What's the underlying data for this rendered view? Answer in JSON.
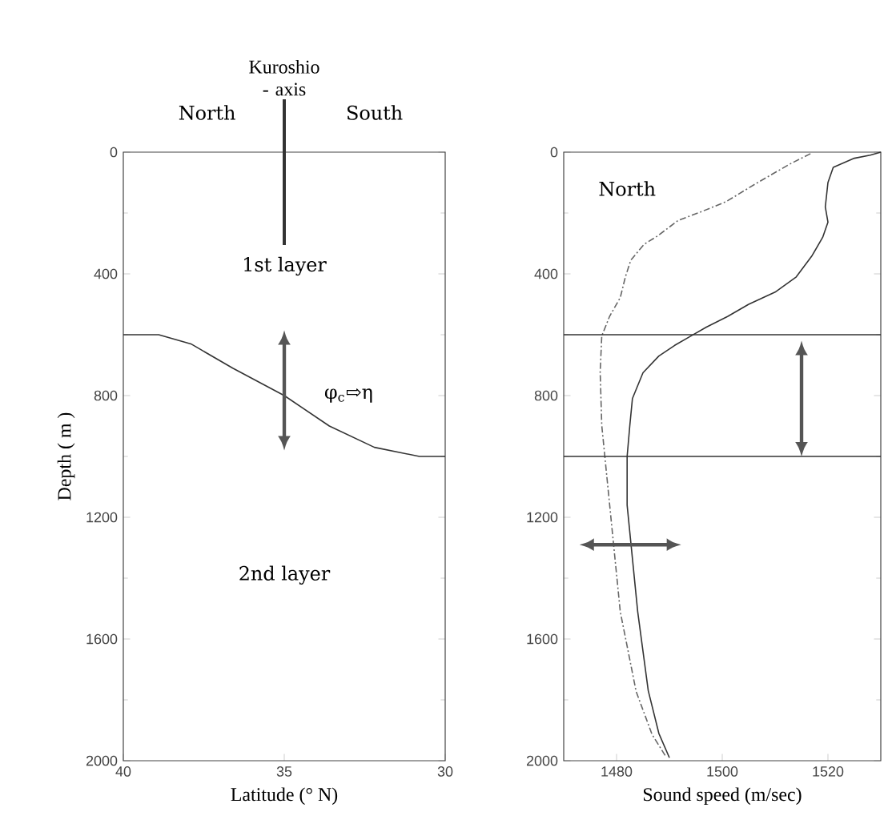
{
  "chart_data": [
    {
      "type": "line",
      "xlabel": "Latitude (° N)",
      "ylabel": "Depth ( m )",
      "xlim": [
        40,
        30
      ],
      "ylim": [
        2000,
        0
      ],
      "xticks": [
        40,
        35,
        30
      ],
      "yticks": [
        0,
        400,
        800,
        1200,
        1600,
        2000
      ],
      "marker": "none",
      "ref_lines": [
        {
          "axis": "x",
          "value": 35,
          "label": "Kuroshio - axis",
          "color": "#333333"
        }
      ],
      "annotations": [
        "North",
        "South",
        "1st layer",
        "2nd layer",
        "φ$_{c}$⇨η"
      ],
      "series": [
        {
          "color": "#333333",
          "line_style": "solid",
          "x": [
            40,
            38.9,
            37.9,
            36.6,
            35,
            33.6,
            32.2,
            30.8,
            30
          ],
          "values": [
            600,
            600,
            630,
            710,
            800,
            900,
            970,
            1000,
            1000
          ]
        }
      ]
    },
    {
      "type": "line",
      "xlabel": "Sound speed  (m/sec)",
      "xlim": [
        1470,
        1530
      ],
      "ylim": [
        2000,
        0
      ],
      "xticks": [
        1480,
        1500,
        1520
      ],
      "yticks": [
        0,
        400,
        800,
        1200,
        1600,
        2000
      ],
      "marker": "none",
      "ref_lines": [
        {
          "axis": "y",
          "value": 600,
          "color": "#333333"
        },
        {
          "axis": "y",
          "value": 1000,
          "color": "#333333"
        }
      ],
      "annotations": [
        "North"
      ],
      "series": [
        {
          "color": "#333333",
          "line_style": "solid",
          "x": [
            1530,
            1528,
            1525,
            1521,
            1520,
            1519.5,
            1520,
            1519,
            1517,
            1514,
            1510,
            1505,
            1501,
            1497,
            1494,
            1491,
            1488,
            1485,
            1483,
            1482.5,
            1482,
            1482,
            1484,
            1486,
            1488,
            1490
          ],
          "values": [
            0,
            10,
            20,
            50,
            100,
            180,
            230,
            280,
            340,
            410,
            460,
            500,
            540,
            575,
            605,
            635,
            670,
            725,
            810,
            900,
            1000,
            1160,
            1510,
            1770,
            1910,
            1990
          ]
        },
        {
          "color": "#666666",
          "line_style": "dashed",
          "x": [
            1516.7,
            1512.7,
            1506.7,
            1500.7,
            1495.7,
            1491.7,
            1487.7,
            1485.2,
            1482.7,
            1481.7,
            1480.7,
            1478.7,
            1477.2,
            1476.9,
            1477.2,
            1478.2,
            1479.2,
            1480.7,
            1483.7,
            1486.7,
            1489.2
          ],
          "values": [
            5,
            40,
            100,
            163,
            198,
            224,
            276,
            303,
            355,
            408,
            478,
            539,
            604,
            723,
            898,
            1073,
            1248,
            1510,
            1772,
            1913,
            1983
          ]
        }
      ]
    }
  ]
}
